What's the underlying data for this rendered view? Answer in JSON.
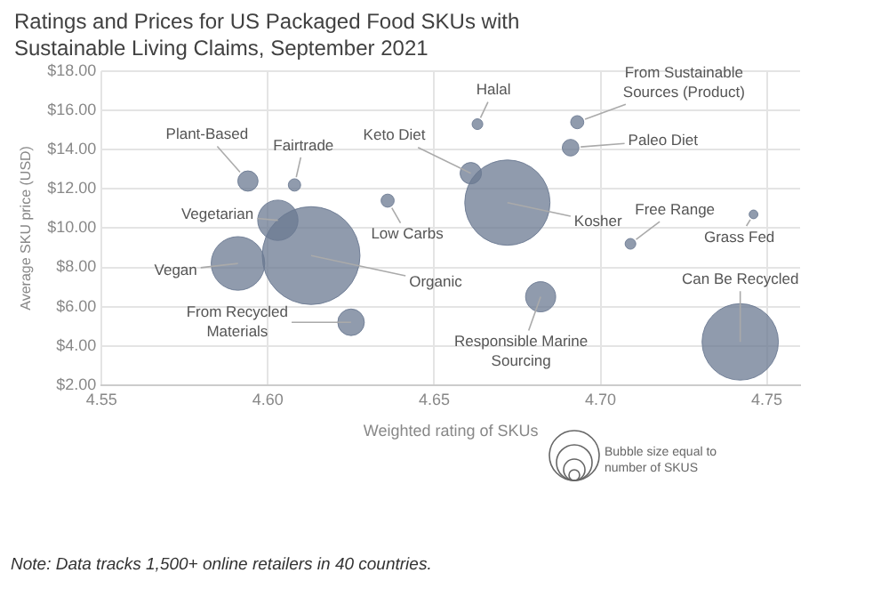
{
  "chart_data": {
    "type": "bubble",
    "title": "Ratings and Prices for US Packaged Food SKUs with Sustainable Living Claims, September 2021",
    "xlabel": "Weighted rating of SKUs",
    "ylabel": "Average SKU price (USD)",
    "x": [
      4.594,
      4.608,
      4.603,
      4.613,
      4.591,
      4.625,
      4.636,
      4.663,
      4.661,
      4.672,
      4.693,
      4.691,
      4.709,
      4.746,
      4.682,
      4.742
    ],
    "values": [
      12.4,
      12.2,
      10.4,
      8.6,
      8.2,
      5.2,
      11.4,
      15.3,
      12.8,
      11.3,
      15.4,
      14.1,
      9.2,
      10.7,
      6.5,
      4.2
    ],
    "sizes": [
      0.043,
      0.016,
      0.17,
      1,
      0.3,
      0.074,
      0.018,
      0.012,
      0.048,
      0.76,
      0.018,
      0.029,
      0.012,
      0.008,
      0.095,
      0.61
    ],
    "color": "#6b7a92",
    "xlim": [
      4.55,
      4.76
    ],
    "xticks": [
      4.55,
      {
        "value": 4.6,
        "label": "4.60"
      },
      4.65,
      {
        "value": 4.7,
        "label": "4.70"
      },
      4.75
    ],
    "ylim": [
      2,
      18
    ],
    "yticks": [
      {
        "value": 2,
        "label": "$2.00"
      },
      {
        "value": 4,
        "label": "$4.00"
      },
      {
        "value": 6,
        "label": "$6.00"
      },
      {
        "value": 8,
        "label": "$8.00"
      },
      {
        "value": 10,
        "label": "$10.00"
      },
      {
        "value": 12,
        "label": "$12.00"
      },
      {
        "value": 14,
        "label": "$14.00"
      },
      {
        "value": 16,
        "label": "$16.00"
      },
      {
        "value": 18,
        "label": "$18.00"
      }
    ],
    "grid": true,
    "legend": false,
    "annotations": [
      {
        "text": "Plant-Based",
        "x": 4.594,
        "y": 12.4
      },
      {
        "text": "Fairtrade",
        "x": 4.608,
        "y": 12.2
      },
      {
        "text": "Vegetarian",
        "x": 4.603,
        "y": 10.4
      },
      {
        "text": "Organic",
        "x": 4.613,
        "y": 8.6
      },
      {
        "text": "Vegan",
        "x": 4.591,
        "y": 8.2
      },
      {
        "text": "From Recycled\nMaterials",
        "x": 4.625,
        "y": 5.2
      },
      {
        "text": "Low Carbs",
        "x": 4.636,
        "y": 11.4
      },
      {
        "text": "Halal",
        "x": 4.663,
        "y": 15.3
      },
      {
        "text": "Keto Diet",
        "x": 4.661,
        "y": 12.8
      },
      {
        "text": "Kosher",
        "x": 4.672,
        "y": 11.3
      },
      {
        "text": "From Sustainable\nSources (Product)",
        "x": 4.693,
        "y": 15.4
      },
      {
        "text": "Paleo Diet",
        "x": 4.691,
        "y": 14.1
      },
      {
        "text": "Free Range",
        "x": 4.709,
        "y": 9.2
      },
      {
        "text": "Grass Fed",
        "x": 4.746,
        "y": 10.7
      },
      {
        "text": "Responsible Marine\nSourcing",
        "x": 4.682,
        "y": 6.5
      },
      {
        "text": "Can Be Recycled",
        "x": 4.742,
        "y": 4.2
      },
      "Bubble size equal to number of SKUS",
      "Note: Data tracks 1,500+ online retailers in 40 countries."
    ]
  }
}
